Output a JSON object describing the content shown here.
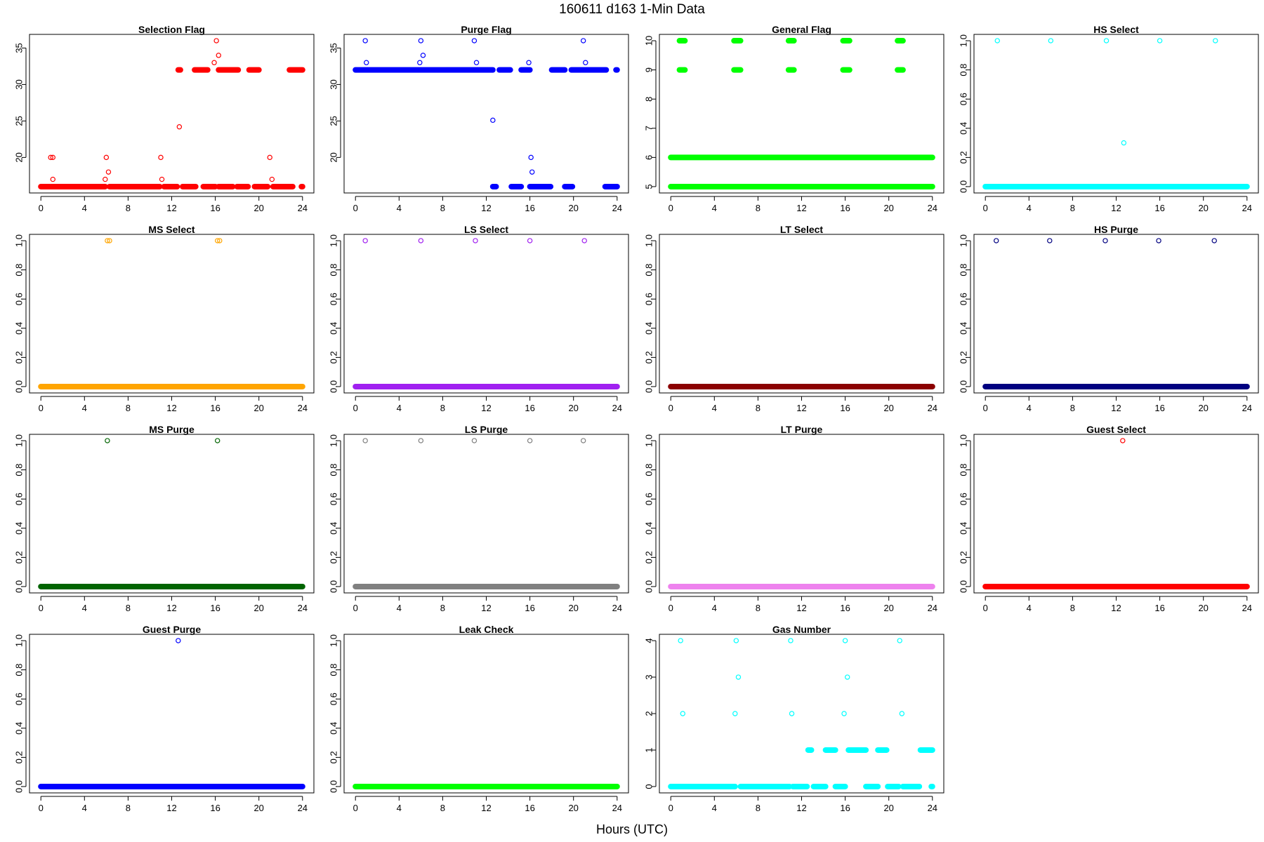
{
  "figure": {
    "title": "160611   d163   1-Min Data",
    "xlabel": "Hours (UTC)"
  },
  "chart_data": [
    {
      "type": "scatter",
      "title": "Selection Flag",
      "color": "#ff0000",
      "xlim": [
        0,
        24
      ],
      "ylim": [
        16,
        36
      ],
      "xticks": [
        0,
        4,
        8,
        12,
        16,
        20,
        24
      ],
      "yticks": [
        20,
        25,
        30,
        35
      ],
      "ytick_labels": [
        "20",
        "25",
        "30",
        "35"
      ],
      "baseline": {
        "y": 16,
        "runs": [
          [
            0,
            5.9
          ],
          [
            6.3,
            10.9
          ],
          [
            11.3,
            12.5
          ],
          [
            13.0,
            14.2
          ],
          [
            14.9,
            16.0
          ],
          [
            16.3,
            17.6
          ],
          [
            18.0,
            19.0
          ],
          [
            19.6,
            20.8
          ],
          [
            21.3,
            23.1
          ],
          [
            23.9,
            24
          ]
        ]
      },
      "bands": [
        {
          "y": 32,
          "runs": [
            [
              12.6,
              12.8
            ],
            [
              14.1,
              15.3
            ],
            [
              16.3,
              18.1
            ],
            [
              19.1,
              20.0
            ],
            [
              22.8,
              24.0
            ]
          ]
        }
      ],
      "points": [
        {
          "x": 0.9,
          "y": 20
        },
        {
          "x": 1.1,
          "y": 20
        },
        {
          "x": 1.1,
          "y": 17
        },
        {
          "x": 6.0,
          "y": 20
        },
        {
          "x": 5.9,
          "y": 17
        },
        {
          "x": 6.2,
          "y": 18
        },
        {
          "x": 11.0,
          "y": 20
        },
        {
          "x": 11.1,
          "y": 17
        },
        {
          "x": 12.7,
          "y": 24.2
        },
        {
          "x": 15.9,
          "y": 33
        },
        {
          "x": 16.1,
          "y": 36
        },
        {
          "x": 16.3,
          "y": 34
        },
        {
          "x": 21.0,
          "y": 20
        },
        {
          "x": 21.2,
          "y": 17
        }
      ]
    },
    {
      "type": "scatter",
      "title": "Purge Flag",
      "color": "#0000ff",
      "xlim": [
        0,
        24
      ],
      "ylim": [
        16,
        36
      ],
      "xticks": [
        0,
        4,
        8,
        12,
        16,
        20,
        24
      ],
      "yticks": [
        20,
        25,
        30,
        35
      ],
      "ytick_labels": [
        "20",
        "25",
        "30",
        "35"
      ],
      "baseline": {
        "y": 32,
        "runs": [
          [
            0,
            12.6
          ],
          [
            13.2,
            14.2
          ],
          [
            15.2,
            16.0
          ],
          [
            18.0,
            19.2
          ],
          [
            19.8,
            23.0
          ],
          [
            23.9,
            24
          ]
        ]
      },
      "bands": [
        {
          "y": 16,
          "runs": [
            [
              12.6,
              12.9
            ],
            [
              14.3,
              15.2
            ],
            [
              16.0,
              17.9
            ],
            [
              19.2,
              19.9
            ],
            [
              22.9,
              24.0
            ]
          ]
        }
      ],
      "points": [
        {
          "x": 0.9,
          "y": 36
        },
        {
          "x": 1.0,
          "y": 33
        },
        {
          "x": 6.0,
          "y": 36
        },
        {
          "x": 5.9,
          "y": 33
        },
        {
          "x": 6.2,
          "y": 34
        },
        {
          "x": 10.9,
          "y": 36
        },
        {
          "x": 11.1,
          "y": 33
        },
        {
          "x": 12.6,
          "y": 25.1
        },
        {
          "x": 15.9,
          "y": 33
        },
        {
          "x": 16.1,
          "y": 20
        },
        {
          "x": 16.2,
          "y": 18
        },
        {
          "x": 20.9,
          "y": 36
        },
        {
          "x": 21.1,
          "y": 33
        }
      ]
    },
    {
      "type": "scatter",
      "title": "General Flag",
      "color": "#00ff00",
      "xlim": [
        0,
        24
      ],
      "ylim": [
        5,
        10
      ],
      "xticks": [
        0,
        4,
        8,
        12,
        16,
        20,
        24
      ],
      "yticks": [
        5,
        6,
        7,
        8,
        9,
        10
      ],
      "ytick_labels": [
        "5",
        "6",
        "7",
        "8",
        "9",
        "10"
      ],
      "baseline": {
        "y": 5,
        "runs": [
          [
            0,
            24
          ]
        ]
      },
      "bands": [
        {
          "y": 6,
          "runs": [
            [
              0,
              24
            ]
          ]
        },
        {
          "y": 10,
          "runs": [
            [
              0.8,
              1.3
            ],
            [
              5.8,
              6.4
            ],
            [
              10.8,
              11.3
            ],
            [
              15.8,
              16.4
            ],
            [
              20.8,
              21.3
            ]
          ]
        },
        {
          "y": 9,
          "runs": [
            [
              0.8,
              1.3
            ],
            [
              5.8,
              6.4
            ],
            [
              10.8,
              11.3
            ],
            [
              15.8,
              16.4
            ],
            [
              20.8,
              21.3
            ]
          ]
        }
      ],
      "points": []
    },
    {
      "type": "scatter",
      "title": "HS Select",
      "color": "#00ffff",
      "xlim": [
        0,
        24
      ],
      "ylim": [
        0,
        1
      ],
      "xticks": [
        0,
        4,
        8,
        12,
        16,
        20,
        24
      ],
      "yticks": [
        0,
        0.2,
        0.4,
        0.6,
        0.8,
        1.0
      ],
      "ytick_labels": [
        "0.0",
        "0.2",
        "0.4",
        "0.6",
        "0.8",
        "1.0"
      ],
      "baseline": {
        "y": 0,
        "runs": [
          [
            0,
            24
          ]
        ]
      },
      "bands": [],
      "points": [
        {
          "x": 1.1,
          "y": 1
        },
        {
          "x": 6.0,
          "y": 1
        },
        {
          "x": 11.1,
          "y": 1
        },
        {
          "x": 12.7,
          "y": 0.3
        },
        {
          "x": 16.0,
          "y": 1
        },
        {
          "x": 21.1,
          "y": 1
        }
      ]
    },
    {
      "type": "scatter",
      "title": "MS Select",
      "color": "#ffa500",
      "xlim": [
        0,
        24
      ],
      "ylim": [
        0,
        1
      ],
      "xticks": [
        0,
        4,
        8,
        12,
        16,
        20,
        24
      ],
      "yticks": [
        0,
        0.2,
        0.4,
        0.6,
        0.8,
        1.0
      ],
      "ytick_labels": [
        "0.0",
        "0.2",
        "0.4",
        "0.6",
        "0.8",
        "1.0"
      ],
      "baseline": {
        "y": 0,
        "runs": [
          [
            0,
            24
          ]
        ]
      },
      "bands": [],
      "points": [
        {
          "x": 6.1,
          "y": 1
        },
        {
          "x": 6.3,
          "y": 1
        },
        {
          "x": 16.2,
          "y": 1
        },
        {
          "x": 16.4,
          "y": 1
        }
      ]
    },
    {
      "type": "scatter",
      "title": "LS Select",
      "color": "#a020f0",
      "xlim": [
        0,
        24
      ],
      "ylim": [
        0,
        1
      ],
      "xticks": [
        0,
        4,
        8,
        12,
        16,
        20,
        24
      ],
      "yticks": [
        0,
        0.2,
        0.4,
        0.6,
        0.8,
        1.0
      ],
      "ytick_labels": [
        "0.0",
        "0.2",
        "0.4",
        "0.6",
        "0.8",
        "1.0"
      ],
      "baseline": {
        "y": 0,
        "runs": [
          [
            0,
            24
          ]
        ]
      },
      "bands": [],
      "points": [
        {
          "x": 0.9,
          "y": 1
        },
        {
          "x": 6.0,
          "y": 1
        },
        {
          "x": 11.0,
          "y": 1
        },
        {
          "x": 16.0,
          "y": 1
        },
        {
          "x": 21.0,
          "y": 1
        }
      ]
    },
    {
      "type": "scatter",
      "title": "LT Select",
      "color": "#8b0000",
      "xlim": [
        0,
        24
      ],
      "ylim": [
        0,
        1
      ],
      "xticks": [
        0,
        4,
        8,
        12,
        16,
        20,
        24
      ],
      "yticks": [
        0,
        0.2,
        0.4,
        0.6,
        0.8,
        1.0
      ],
      "ytick_labels": [
        "0.0",
        "0.2",
        "0.4",
        "0.6",
        "0.8",
        "1.0"
      ],
      "baseline": {
        "y": 0,
        "runs": [
          [
            0,
            24
          ]
        ]
      },
      "bands": [],
      "points": []
    },
    {
      "type": "scatter",
      "title": "HS Purge",
      "color": "#000080",
      "xlim": [
        0,
        24
      ],
      "ylim": [
        0,
        1
      ],
      "xticks": [
        0,
        4,
        8,
        12,
        16,
        20,
        24
      ],
      "yticks": [
        0,
        0.2,
        0.4,
        0.6,
        0.8,
        1.0
      ],
      "ytick_labels": [
        "0.0",
        "0.2",
        "0.4",
        "0.6",
        "0.8",
        "1.0"
      ],
      "baseline": {
        "y": 0,
        "runs": [
          [
            0,
            24
          ]
        ]
      },
      "bands": [],
      "points": [
        {
          "x": 1.0,
          "y": 1
        },
        {
          "x": 5.9,
          "y": 1
        },
        {
          "x": 11.0,
          "y": 1
        },
        {
          "x": 15.9,
          "y": 1
        },
        {
          "x": 21.0,
          "y": 1
        }
      ]
    },
    {
      "type": "scatter",
      "title": "MS Purge",
      "color": "#006400",
      "xlim": [
        0,
        24
      ],
      "ylim": [
        0,
        1
      ],
      "xticks": [
        0,
        4,
        8,
        12,
        16,
        20,
        24
      ],
      "yticks": [
        0,
        0.2,
        0.4,
        0.6,
        0.8,
        1.0
      ],
      "ytick_labels": [
        "0.0",
        "0.2",
        "0.4",
        "0.6",
        "0.8",
        "1.0"
      ],
      "baseline": {
        "y": 0,
        "runs": [
          [
            0,
            24
          ]
        ]
      },
      "bands": [],
      "points": [
        {
          "x": 6.1,
          "y": 1
        },
        {
          "x": 16.2,
          "y": 1
        }
      ]
    },
    {
      "type": "scatter",
      "title": "LS Purge",
      "color": "#808080",
      "xlim": [
        0,
        24
      ],
      "ylim": [
        0,
        1
      ],
      "xticks": [
        0,
        4,
        8,
        12,
        16,
        20,
        24
      ],
      "yticks": [
        0,
        0.2,
        0.4,
        0.6,
        0.8,
        1.0
      ],
      "ytick_labels": [
        "0.0",
        "0.2",
        "0.4",
        "0.6",
        "0.8",
        "1.0"
      ],
      "baseline": {
        "y": 0,
        "runs": [
          [
            0,
            24
          ]
        ]
      },
      "bands": [],
      "points": [
        {
          "x": 0.9,
          "y": 1
        },
        {
          "x": 6.0,
          "y": 1
        },
        {
          "x": 10.9,
          "y": 1
        },
        {
          "x": 16.0,
          "y": 1
        },
        {
          "x": 20.9,
          "y": 1
        }
      ]
    },
    {
      "type": "scatter",
      "title": "LT Purge",
      "color": "#ee82ee",
      "xlim": [
        0,
        24
      ],
      "ylim": [
        0,
        1
      ],
      "xticks": [
        0,
        4,
        8,
        12,
        16,
        20,
        24
      ],
      "yticks": [
        0,
        0.2,
        0.4,
        0.6,
        0.8,
        1.0
      ],
      "ytick_labels": [
        "0.0",
        "0.2",
        "0.4",
        "0.6",
        "0.8",
        "1.0"
      ],
      "baseline": {
        "y": 0,
        "runs": [
          [
            0,
            24
          ]
        ]
      },
      "bands": [],
      "points": []
    },
    {
      "type": "scatter",
      "title": "Guest Select",
      "color": "#ff0000",
      "xlim": [
        0,
        24
      ],
      "ylim": [
        0,
        1
      ],
      "xticks": [
        0,
        4,
        8,
        12,
        16,
        20,
        24
      ],
      "yticks": [
        0,
        0.2,
        0.4,
        0.6,
        0.8,
        1.0
      ],
      "ytick_labels": [
        "0.0",
        "0.2",
        "0.4",
        "0.6",
        "0.8",
        "1.0"
      ],
      "baseline": {
        "y": 0,
        "runs": [
          [
            0,
            24
          ]
        ]
      },
      "bands": [],
      "points": [
        {
          "x": 12.6,
          "y": 1
        }
      ]
    },
    {
      "type": "scatter",
      "title": "Guest Purge",
      "color": "#0000ff",
      "xlim": [
        0,
        24
      ],
      "ylim": [
        0,
        1
      ],
      "xticks": [
        0,
        4,
        8,
        12,
        16,
        20,
        24
      ],
      "yticks": [
        0,
        0.2,
        0.4,
        0.6,
        0.8,
        1.0
      ],
      "ytick_labels": [
        "0.0",
        "0.2",
        "0.4",
        "0.6",
        "0.8",
        "1.0"
      ],
      "baseline": {
        "y": 0,
        "runs": [
          [
            0,
            24
          ]
        ]
      },
      "bands": [],
      "points": [
        {
          "x": 12.6,
          "y": 1
        }
      ]
    },
    {
      "type": "scatter",
      "title": "Leak Check",
      "color": "#00ff00",
      "xlim": [
        0,
        24
      ],
      "ylim": [
        0,
        1
      ],
      "xticks": [
        0,
        4,
        8,
        12,
        16,
        20,
        24
      ],
      "yticks": [
        0,
        0.2,
        0.4,
        0.6,
        0.8,
        1.0
      ],
      "ytick_labels": [
        "0.0",
        "0.2",
        "0.4",
        "0.6",
        "0.8",
        "1.0"
      ],
      "baseline": {
        "y": 0,
        "runs": [
          [
            0,
            24
          ]
        ]
      },
      "bands": [],
      "points": []
    },
    {
      "type": "scatter",
      "title": "Gas Number",
      "color": "#00ffff",
      "xlim": [
        0,
        24
      ],
      "ylim": [
        0,
        4
      ],
      "xticks": [
        0,
        4,
        8,
        12,
        16,
        20,
        24
      ],
      "yticks": [
        0,
        1,
        2,
        3,
        4
      ],
      "ytick_labels": [
        "0",
        "1",
        "2",
        "3",
        "4"
      ],
      "baseline": {
        "y": 0,
        "runs": [
          [
            0,
            5.9
          ],
          [
            6.4,
            10.9
          ],
          [
            11.2,
            12.5
          ],
          [
            13.1,
            14.2
          ],
          [
            15.1,
            16.0
          ],
          [
            17.9,
            19.0
          ],
          [
            19.9,
            20.9
          ],
          [
            21.3,
            22.8
          ],
          [
            23.9,
            24
          ]
        ]
      },
      "bands": [
        {
          "y": 1,
          "runs": [
            [
              12.6,
              12.9
            ],
            [
              14.2,
              15.1
            ],
            [
              16.3,
              17.9
            ],
            [
              19.0,
              19.8
            ],
            [
              22.9,
              24.0
            ]
          ]
        }
      ],
      "points": [
        {
          "x": 0.9,
          "y": 4
        },
        {
          "x": 1.1,
          "y": 2
        },
        {
          "x": 6.0,
          "y": 4
        },
        {
          "x": 5.9,
          "y": 2
        },
        {
          "x": 6.2,
          "y": 3
        },
        {
          "x": 11.0,
          "y": 4
        },
        {
          "x": 11.1,
          "y": 2
        },
        {
          "x": 16.0,
          "y": 4
        },
        {
          "x": 15.9,
          "y": 2
        },
        {
          "x": 16.2,
          "y": 3
        },
        {
          "x": 21.0,
          "y": 4
        },
        {
          "x": 21.2,
          "y": 2
        }
      ]
    }
  ]
}
